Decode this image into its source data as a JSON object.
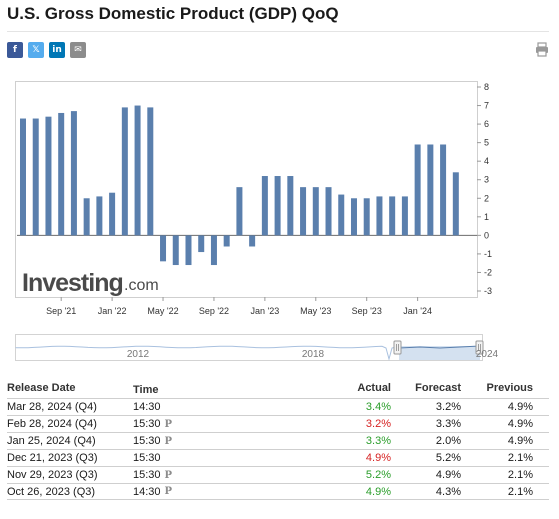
{
  "title": "U.S. Gross Domestic Product (GDP) QoQ",
  "share": {
    "facebook": {
      "glyph": "f",
      "color": "#3b5998",
      "icon": "facebook-icon"
    },
    "twitter": {
      "glyph": "𝕏",
      "color": "#55acee",
      "icon": "twitter-icon"
    },
    "linkedin": {
      "glyph": "in",
      "color": "#0077b5",
      "icon": "linkedin-icon"
    },
    "email": {
      "glyph": "✉",
      "color": "#8c8c8c",
      "icon": "email-icon"
    },
    "print": {
      "icon": "print-icon"
    }
  },
  "chart_data": {
    "type": "bar",
    "bar_color": "#5a7fad",
    "values": [
      6.3,
      6.3,
      6.4,
      6.6,
      6.7,
      2.0,
      2.1,
      2.3,
      6.9,
      7.0,
      6.9,
      -1.4,
      -1.6,
      -1.6,
      -0.9,
      -1.6,
      -0.6,
      2.6,
      -0.6,
      3.2,
      3.2,
      3.2,
      2.6,
      2.6,
      2.6,
      2.2,
      2.0,
      2.0,
      2.1,
      2.1,
      2.1,
      4.9,
      4.9,
      4.9,
      3.4
    ],
    "x_tick_labels": [
      "Sep '21",
      "Jan '22",
      "May '22",
      "Sep '22",
      "Jan '23",
      "May '23",
      "Sep '23",
      "Jan '24"
    ],
    "y_ticks": [
      8,
      7,
      6,
      5,
      4,
      3,
      2,
      1,
      0,
      -1,
      -2,
      -3
    ],
    "ylim": [
      -3,
      8
    ],
    "grid": false,
    "watermark": {
      "brand": "Investing",
      "suffix": ".com"
    }
  },
  "navigator": {
    "labels": [
      "2012",
      "2018",
      "2024"
    ],
    "series_color": "#a9c1df",
    "selection_color": "#b8cde6"
  },
  "table": {
    "headers": {
      "date": "Release Date",
      "time": "Time",
      "actual": "Actual",
      "forecast": "Forecast",
      "previous": "Previous"
    },
    "rows": [
      {
        "date": "Mar 28, 2024 (Q4)",
        "time": "14:30",
        "prelim": false,
        "actual": "3.4%",
        "actual_color": "green",
        "forecast": "3.2%",
        "previous": "4.9%"
      },
      {
        "date": "Feb 28, 2024 (Q4)",
        "time": "15:30",
        "prelim": true,
        "actual": "3.2%",
        "actual_color": "red",
        "forecast": "3.3%",
        "previous": "4.9%"
      },
      {
        "date": "Jan 25, 2024 (Q4)",
        "time": "15:30",
        "prelim": true,
        "actual": "3.3%",
        "actual_color": "green",
        "forecast": "2.0%",
        "previous": "4.9%"
      },
      {
        "date": "Dec 21, 2023 (Q3)",
        "time": "15:30",
        "prelim": false,
        "actual": "4.9%",
        "actual_color": "red",
        "forecast": "5.2%",
        "previous": "2.1%"
      },
      {
        "date": "Nov 29, 2023 (Q3)",
        "time": "15:30",
        "prelim": true,
        "actual": "5.2%",
        "actual_color": "green",
        "forecast": "4.9%",
        "previous": "2.1%"
      },
      {
        "date": "Oct 26, 2023 (Q3)",
        "time": "14:30",
        "prelim": true,
        "actual": "4.9%",
        "actual_color": "green",
        "forecast": "4.3%",
        "previous": "2.1%"
      }
    ],
    "prelim_glyph": "P"
  }
}
